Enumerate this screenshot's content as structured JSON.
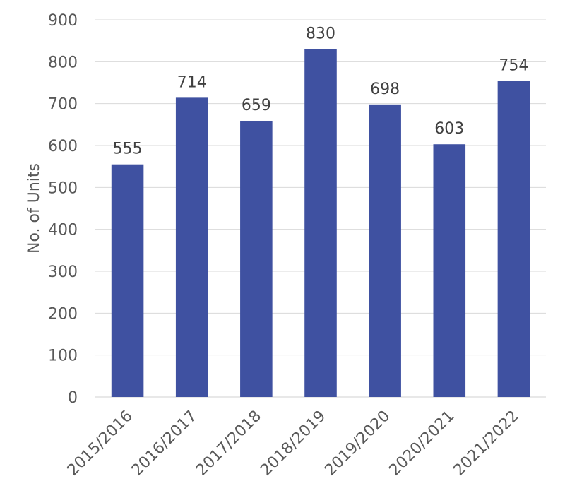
{
  "chart_data": {
    "type": "bar",
    "title": "",
    "xlabel": "",
    "ylabel": "No. of Units",
    "categories": [
      "2015/2016",
      "2016/2017",
      "2017/2018",
      "2018/2019",
      "2019/2020",
      "2020/2021",
      "2021/2022"
    ],
    "values": [
      555,
      714,
      659,
      830,
      698,
      603,
      754
    ],
    "ylim": [
      0,
      900
    ],
    "yticks": [
      0,
      100,
      200,
      300,
      400,
      500,
      600,
      700,
      800,
      900
    ],
    "grid": true,
    "legend": "none",
    "data_labels": true,
    "colors": {
      "bar": "#3f51a1",
      "grid": "#d9d9d9",
      "axis_text": "#595959",
      "label_text": "#404040"
    }
  }
}
